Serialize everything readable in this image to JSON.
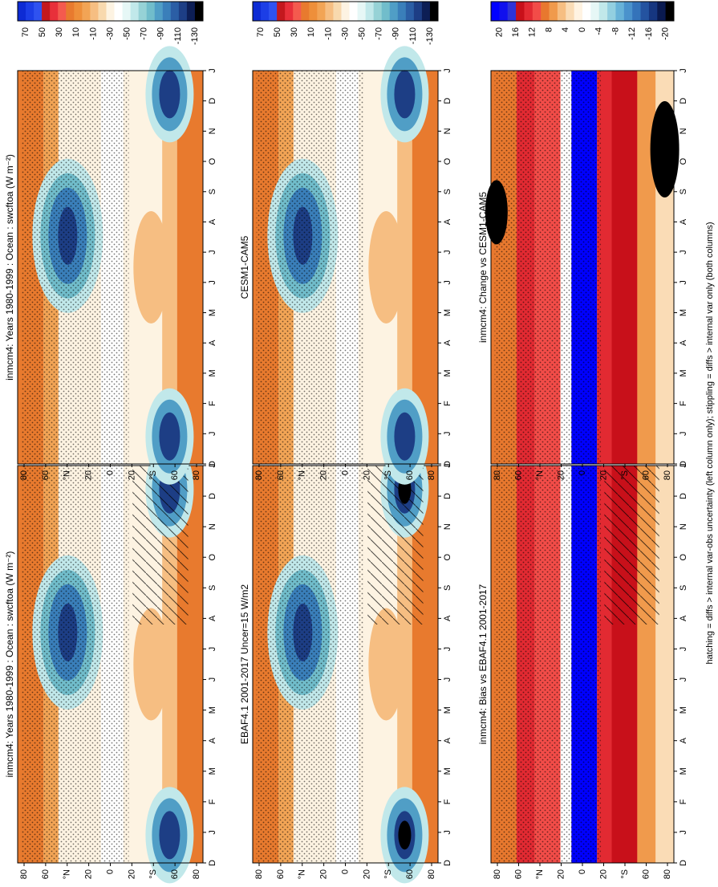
{
  "figure": {
    "footnote": "hatching = diffs > internal var-obs uncertainty (left column only); stippling = diffs > internal var only (both columns)"
  },
  "chart_data": [
    {
      "id": "p1",
      "type": "heatmap",
      "title": "inmcm4: Years 1980-1999 : Ocean : swcftoa (W m⁻²)",
      "x_ticks": [
        "D",
        "J",
        "F",
        "M",
        "A",
        "M",
        "J",
        "J",
        "A",
        "S",
        "O",
        "N",
        "D",
        "J"
      ],
      "y_ticks": [
        "80",
        "60",
        "°N",
        "20",
        "0",
        "20",
        "°S",
        "60",
        "80"
      ],
      "colorbar": [
        "70",
        "50",
        "30",
        "10",
        "-10",
        "-30",
        "-50",
        "-70",
        "-90",
        "-110",
        "-130"
      ],
      "hatching": true,
      "stippling": true
    },
    {
      "id": "p2",
      "type": "heatmap",
      "title": "inmcm4: Years 1980-1999 : Ocean : swcftoa (W m⁻²)",
      "x_ticks": [
        "D",
        "J",
        "F",
        "M",
        "A",
        "M",
        "J",
        "J",
        "A",
        "S",
        "O",
        "N",
        "D",
        "J"
      ],
      "y_ticks": [
        "80",
        "60",
        "°N",
        "20",
        "0",
        "20",
        "°S",
        "60",
        "80"
      ],
      "colorbar": [
        "70",
        "50",
        "30",
        "10",
        "-10",
        "-30",
        "-50",
        "-70",
        "-90",
        "-110",
        "-130"
      ],
      "hatching": false,
      "stippling": true
    },
    {
      "id": "p3",
      "type": "heatmap",
      "title": "EBAF4.1 2001-2017 Uncer=15 W/m2",
      "x_ticks": [
        "D",
        "J",
        "F",
        "M",
        "A",
        "M",
        "J",
        "J",
        "A",
        "S",
        "O",
        "N",
        "D",
        "J"
      ],
      "y_ticks": [
        "80",
        "60",
        "°N",
        "20",
        "0",
        "20",
        "°S",
        "60",
        "80"
      ],
      "colorbar": [
        "70",
        "50",
        "30",
        "10",
        "-10",
        "-30",
        "-50",
        "-70",
        "-90",
        "-110",
        "-130"
      ],
      "hatching": true,
      "stippling": true
    },
    {
      "id": "p4",
      "type": "heatmap",
      "title": "CESM1-CAM5",
      "x_ticks": [
        "D",
        "J",
        "F",
        "M",
        "A",
        "M",
        "J",
        "J",
        "A",
        "S",
        "O",
        "N",
        "D",
        "J"
      ],
      "y_ticks": [
        "80",
        "60",
        "°N",
        "20",
        "0",
        "20",
        "°S",
        "60",
        "80"
      ],
      "colorbar": [
        "70",
        "50",
        "30",
        "10",
        "-10",
        "-30",
        "-50",
        "-70",
        "-90",
        "-110",
        "-130"
      ],
      "hatching": false,
      "stippling": true
    },
    {
      "id": "p5",
      "type": "heatmap",
      "title": "inmcm4: Bias vs EBAF4.1 2001-2017",
      "x_ticks": [
        "D",
        "J",
        "F",
        "M",
        "A",
        "M",
        "J",
        "J",
        "A",
        "S",
        "O",
        "N",
        "D",
        "J"
      ],
      "y_ticks": [
        "80",
        "60",
        "°N",
        "20",
        "0",
        "20",
        "°S",
        "60",
        "80"
      ],
      "colorbar": [
        "20",
        "16",
        "12",
        "8",
        "4",
        "0",
        "-4",
        "-8",
        "-12",
        "-16",
        "-20"
      ],
      "hatching": true,
      "stippling": true
    },
    {
      "id": "p6",
      "type": "heatmap",
      "title": "inmcm4: Change vs CESM1-CAM5",
      "x_ticks": [
        "D",
        "J",
        "F",
        "M",
        "A",
        "M",
        "J",
        "J",
        "A",
        "S",
        "O",
        "N",
        "D",
        "J"
      ],
      "y_ticks": [
        "80",
        "60",
        "°N",
        "20",
        "0",
        "20",
        "°S",
        "60",
        "80"
      ],
      "colorbar": [
        "20",
        "16",
        "12",
        "8",
        "4",
        "0",
        "-4",
        "-8",
        "-12",
        "-16",
        "-20"
      ],
      "hatching": false,
      "stippling": true
    }
  ],
  "palettes": {
    "main": [
      "#0d2bd4",
      "#1c3ee6",
      "#2f52f0",
      "#c4181e",
      "#e8303a",
      "#f45a4e",
      "#e87a2e",
      "#ee8f3a",
      "#f2a455",
      "#f6be82",
      "#f8d9ae",
      "#fdf3e2",
      "#ffffff",
      "#e6f7f6",
      "#c1e8ea",
      "#96d2d6",
      "#71bdcb",
      "#509ec6",
      "#3a7fba",
      "#2b5ea5",
      "#1d3e85",
      "#0d1e55",
      "#000000"
    ],
    "diff": [
      "#0000ff",
      "#1010ee",
      "#2e33d8",
      "#c8101a",
      "#e22a32",
      "#f24c48",
      "#e8782e",
      "#f09a4c",
      "#f6be82",
      "#fadcb6",
      "#fff3e2",
      "#ffffff",
      "#e6f7f6",
      "#c1e8ea",
      "#93cfe0",
      "#68b2d8",
      "#4a92cc",
      "#3473ba",
      "#2453a0",
      "#163680",
      "#0a1a50",
      "#000000"
    ]
  }
}
